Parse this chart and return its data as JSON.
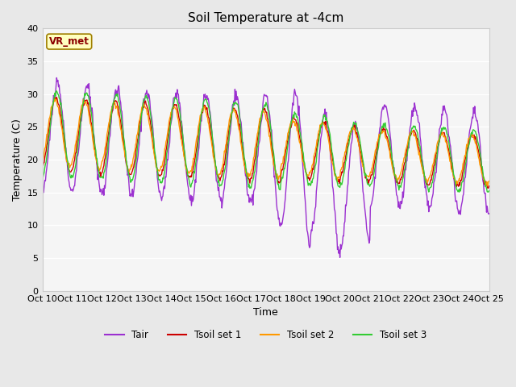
{
  "title": "Soil Temperature at -4cm",
  "xlabel": "Time",
  "ylabel": "Temperature (C)",
  "ylim": [
    0,
    40
  ],
  "yticks": [
    0,
    5,
    10,
    15,
    20,
    25,
    30,
    35,
    40
  ],
  "fig_bg_color": "#e8e8e8",
  "plot_bg_color": "#f5f5f5",
  "annotation_text": "VR_met",
  "annotation_color": "#8b0000",
  "annotation_bg": "#ffffc0",
  "annotation_edge": "#a08000",
  "line_colors": {
    "Tair": "#9b30d0",
    "Tsoil1": "#cc0000",
    "Tsoil2": "#ff9900",
    "Tsoil3": "#33cc33"
  },
  "legend_labels": [
    "Tair",
    "Tsoil set 1",
    "Tsoil set 2",
    "Tsoil set 3"
  ],
  "xtick_labels": [
    "Oct 10",
    "Oct 11",
    "Oct 12",
    "Oct 13",
    "Oct 14",
    "Oct 15",
    "Oct 16",
    "Oct 17",
    "Oct 18",
    "Oct 19",
    "Oct 20",
    "Oct 21",
    "Oct 22",
    "Oct 23",
    "Oct 24",
    "Oct 25"
  ],
  "n_days": 15,
  "pts_per_day": 48
}
